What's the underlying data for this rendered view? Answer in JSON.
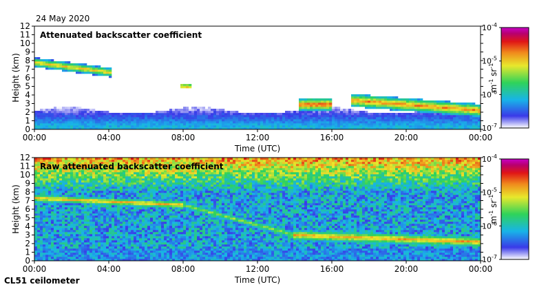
{
  "header": {
    "date": "24 May 2020"
  },
  "footer": {
    "instrument": "CL51 ceilometer"
  },
  "colormap": {
    "stops": [
      "#ffffff",
      "#3a3ae8",
      "#18b4e8",
      "#2fd35a",
      "#e8e82c",
      "#f08a1c",
      "#e01616",
      "#b8006e",
      "#c800c8"
    ],
    "tick_labels": [
      {
        "base": "10",
        "exp": "-4"
      },
      {
        "base": "10",
        "exp": "-5"
      },
      {
        "base": "10",
        "exp": "-6"
      },
      {
        "base": "10",
        "exp": "-7"
      }
    ],
    "units_label": {
      "part1": "m",
      "exp1": "-1",
      "part2": " sr",
      "exp2": "-1"
    }
  },
  "chart_data": [
    {
      "type": "heatmap",
      "title": "Attenuated backscatter coefficient",
      "xlabel": "Time (UTC)",
      "ylabel": "Height (km)",
      "xlim": [
        0,
        24
      ],
      "ylim": [
        0,
        12
      ],
      "xticks": [
        0,
        4,
        8,
        12,
        16,
        20,
        24
      ],
      "xtick_labels": [
        "00:00",
        "04:00",
        "08:00",
        "12:00",
        "16:00",
        "20:00",
        "00:00"
      ],
      "yticks": [
        0,
        1,
        2,
        3,
        4,
        5,
        6,
        7,
        8,
        9,
        10,
        11,
        12
      ],
      "ytick_labels": [
        "0",
        "1",
        "2",
        "3",
        "4",
        "5",
        "6",
        "7",
        "8",
        "9",
        "10",
        "11",
        "12"
      ],
      "colorbar_range_log10": [
        -7,
        -4
      ],
      "features": [
        {
          "name": "elevated aerosol layer",
          "t_start": 0.0,
          "t_end": 4.2,
          "h_start_km": 7.8,
          "h_end_km": 6.6,
          "thickness_km": 0.8,
          "intensity_log10": -4.9
        },
        {
          "name": "small cloud patch",
          "t_start": 7.9,
          "t_end": 8.4,
          "h_start_km": 5.0,
          "h_end_km": 5.0,
          "thickness_km": 0.3,
          "intensity_log10": -4.6
        },
        {
          "name": "cloud layer",
          "t_start": 14.2,
          "t_end": 16.0,
          "h_start_km": 2.9,
          "h_end_km": 2.9,
          "thickness_km": 1.0,
          "intensity_log10": -4.5
        },
        {
          "name": "boundary layer top",
          "t_start": 17.0,
          "t_end": 24.0,
          "h_start_km": 3.4,
          "h_end_km": 2.2,
          "thickness_km": 1.2,
          "intensity_log10": -4.7
        },
        {
          "name": "near-surface aerosol",
          "t_start": 0.0,
          "t_end": 24.0,
          "h_start_km": 0.0,
          "h_end_km": 2.0,
          "thickness_km": 2.0,
          "intensity_log10": -6.4
        }
      ]
    },
    {
      "type": "heatmap",
      "title": "Raw attenuated backscatter coefficient",
      "xlabel": "Time (UTC)",
      "ylabel": "Height (km)",
      "xlim": [
        0,
        24
      ],
      "ylim": [
        0,
        12
      ],
      "xticks": [
        0,
        4,
        8,
        12,
        16,
        20,
        24
      ],
      "xtick_labels": [
        "00:00",
        "04:00",
        "08:00",
        "12:00",
        "16:00",
        "20:00",
        "00:00"
      ],
      "yticks": [
        0,
        1,
        2,
        3,
        4,
        5,
        6,
        7,
        8,
        9,
        10,
        11,
        12
      ],
      "ytick_labels": [
        "0",
        "1",
        "2",
        "3",
        "4",
        "5",
        "6",
        "7",
        "8",
        "9",
        "10",
        "11",
        "12"
      ],
      "colorbar_range_log10": [
        -7,
        -4
      ],
      "features": [
        {
          "name": "elevated aerosol layer",
          "t_start": 0.0,
          "t_end": 8.0,
          "h_start_km": 7.3,
          "h_end_km": 6.5,
          "thickness_km": 0.6,
          "intensity_log10": -4.8
        },
        {
          "name": "descending layer",
          "t_start": 8.0,
          "t_end": 14.0,
          "h_start_km": 6.5,
          "h_end_km": 3.0,
          "thickness_km": 0.8,
          "intensity_log10": -5.3
        },
        {
          "name": "boundary layer top",
          "t_start": 14.0,
          "t_end": 24.0,
          "h_start_km": 3.0,
          "h_end_km": 2.2,
          "thickness_km": 1.0,
          "intensity_log10": -4.8
        },
        {
          "name": "high-altitude noise",
          "t_start": 0.0,
          "t_end": 24.0,
          "h_start_km": 8.0,
          "h_end_km": 12.0,
          "thickness_km": 4.0,
          "intensity_log10": -5.0
        }
      ]
    }
  ]
}
